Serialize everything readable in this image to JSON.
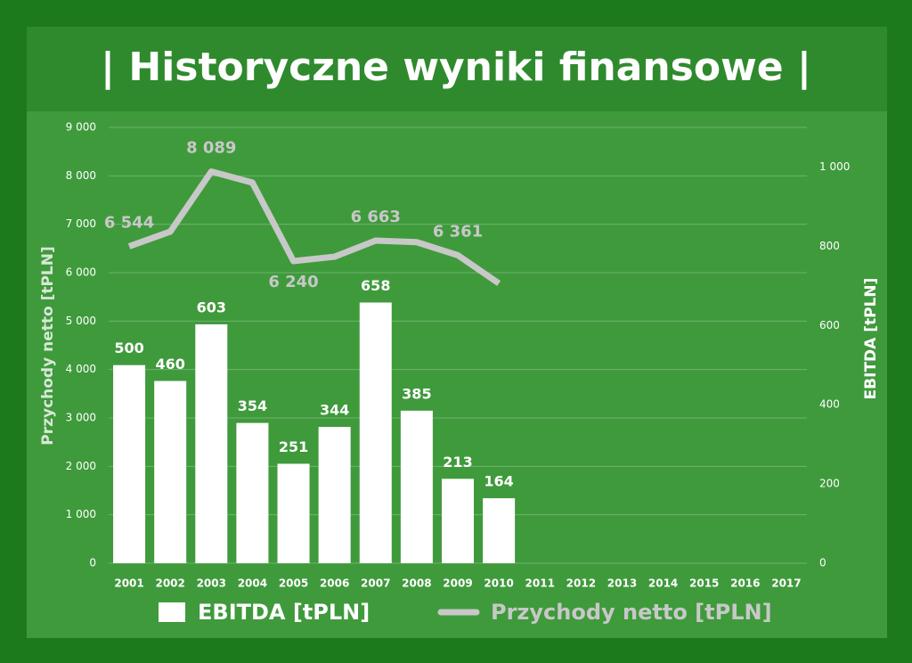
{
  "chart_data": {
    "type": "combo",
    "title": "| Historyczne wyniki finansowe |",
    "y_label": "Przychody netto [tPLN]",
    "y2_label": "EBITDA [tPLN]",
    "categories": [
      "2001",
      "2002",
      "2003",
      "2004",
      "2005",
      "2006",
      "2007",
      "2008",
      "2009",
      "2010",
      "2011",
      "2012",
      "2013",
      "2014",
      "2015",
      "2016",
      "2017"
    ],
    "ylim": [
      0,
      9000
    ],
    "yticks": [
      0,
      {
        "value": 1000,
        "label": "1 000"
      },
      {
        "value": 2000,
        "label": "2 000"
      },
      {
        "value": 3000,
        "label": "3 000"
      },
      {
        "value": 4000,
        "label": "4 000"
      },
      {
        "value": 5000,
        "label": "5 000"
      },
      {
        "value": 6000,
        "label": "6 000"
      },
      {
        "value": 7000,
        "label": "7 000"
      },
      {
        "value": 8000,
        "label": "8 000"
      },
      {
        "value": 9000,
        "label": "9 000"
      }
    ],
    "y2lim": [
      0,
      1100
    ],
    "y2ticks": [
      0,
      200,
      400,
      600,
      800,
      {
        "value": 1000,
        "label": "1 000"
      }
    ],
    "grid": true,
    "series": [
      {
        "name": "EBITDA [tPLN]",
        "type": "bar",
        "axis": "y2",
        "color": "#ffffff",
        "values": [
          500,
          460,
          603,
          354,
          251,
          344,
          658,
          385,
          213,
          164,
          null,
          null,
          null,
          null,
          null,
          null,
          null
        ]
      },
      {
        "name": "Przychody netto [tPLN]",
        "type": "line",
        "axis": "y",
        "color": "#c8c8c8",
        "values": [
          6544,
          6847,
          8089,
          7860,
          6240,
          6330,
          6663,
          6630,
          6361,
          5780,
          null,
          null,
          null,
          null,
          null,
          null,
          null
        ],
        "value_labels": [
          "6 544",
          null,
          "8 089",
          null,
          "6 240",
          null,
          "6 663",
          null,
          "6 361",
          null,
          null,
          null,
          null,
          null,
          null,
          null,
          null
        ]
      }
    ]
  }
}
